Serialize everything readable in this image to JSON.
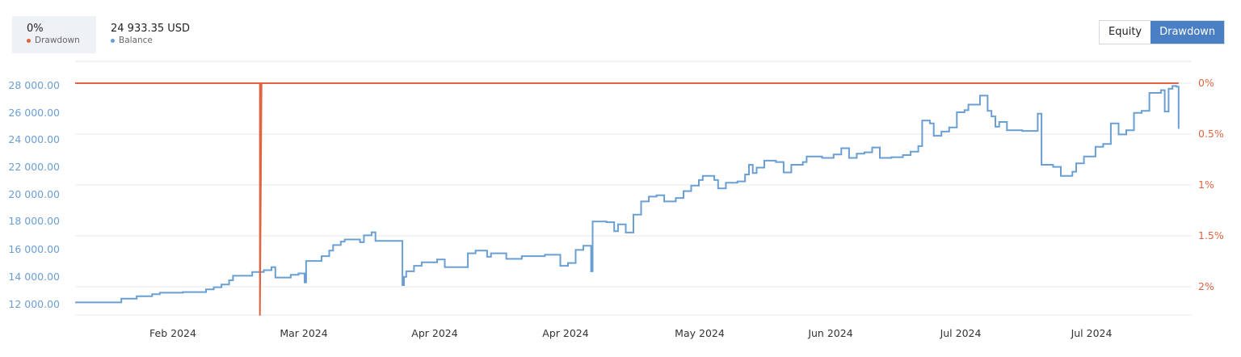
{
  "legend": {
    "drawdown": {
      "value": "0%",
      "label": "Drawdown",
      "color": "#e0643f"
    },
    "balance": {
      "value": "24 933.35 USD",
      "label": "Balance",
      "color": "#6a9fd4"
    }
  },
  "toggle": {
    "equity_label": "Equity",
    "drawdown_label": "Drawdown",
    "active": "Drawdown"
  },
  "chart_data": {
    "type": "line",
    "x_labels": [
      "Feb 2024",
      "Mar 2024",
      "Apr 2024",
      "Apr 2024",
      "May 2024",
      "Jun 2024",
      "Jul 2024",
      "Jul 2024"
    ],
    "y_left_ticks": [
      "28 000.00",
      "26 000.00",
      "24 000.00",
      "22 000.00",
      "20 000.00",
      "18 000.00",
      "16 000.00",
      "14 000.00",
      "12 000.00"
    ],
    "y_right_ticks": [
      "0%",
      "0.5%",
      "1%",
      "1.5%",
      "2%"
    ],
    "ylim_left": [
      12000,
      28000
    ],
    "ylim_right": [
      0,
      2
    ],
    "grid": true,
    "series": [
      {
        "name": "Balance",
        "axis": "left",
        "color": "#6a9fd4",
        "shape": "step",
        "points": [
          [
            0.0,
            12150
          ],
          [
            0.6,
            12420
          ],
          [
            0.8,
            12600
          ],
          [
            1.0,
            12750
          ],
          [
            1.1,
            12850
          ],
          [
            1.4,
            12900
          ],
          [
            1.7,
            13100
          ],
          [
            1.8,
            13250
          ],
          [
            1.9,
            13450
          ],
          [
            2.0,
            13750
          ],
          [
            2.05,
            14080
          ],
          [
            2.3,
            14350
          ],
          [
            2.45,
            14480
          ],
          [
            2.55,
            14700
          ],
          [
            2.6,
            13950
          ],
          [
            2.7,
            13950
          ],
          [
            2.8,
            14150
          ],
          [
            2.9,
            14250
          ],
          [
            2.98,
            13600
          ],
          [
            3.0,
            15150
          ],
          [
            3.2,
            15500
          ],
          [
            3.3,
            15900
          ],
          [
            3.35,
            16300
          ],
          [
            3.45,
            16550
          ],
          [
            3.5,
            16700
          ],
          [
            3.7,
            16500
          ],
          [
            3.75,
            17000
          ],
          [
            3.85,
            17220
          ],
          [
            3.9,
            16600
          ],
          [
            4.25,
            13400
          ],
          [
            4.27,
            14000
          ],
          [
            4.3,
            14400
          ],
          [
            4.4,
            14800
          ],
          [
            4.5,
            15050
          ],
          [
            4.7,
            15250
          ],
          [
            4.8,
            14700
          ],
          [
            5.0,
            14700
          ],
          [
            5.1,
            15700
          ],
          [
            5.2,
            15900
          ],
          [
            5.35,
            15450
          ],
          [
            5.4,
            15700
          ],
          [
            5.6,
            15300
          ],
          [
            5.8,
            15500
          ],
          [
            6.1,
            15600
          ],
          [
            6.3,
            14800
          ],
          [
            6.4,
            15000
          ],
          [
            6.5,
            15950
          ],
          [
            6.6,
            16250
          ],
          [
            6.7,
            14400
          ],
          [
            6.72,
            18000
          ],
          [
            6.9,
            17950
          ],
          [
            7.0,
            17300
          ],
          [
            7.05,
            17800
          ],
          [
            7.15,
            17200
          ],
          [
            7.25,
            18500
          ],
          [
            7.35,
            19450
          ],
          [
            7.45,
            19800
          ],
          [
            7.55,
            19900
          ],
          [
            7.65,
            19450
          ],
          [
            7.8,
            19700
          ],
          [
            7.9,
            20200
          ],
          [
            8.0,
            20600
          ],
          [
            8.1,
            21000
          ],
          [
            8.15,
            21300
          ],
          [
            8.3,
            21000
          ],
          [
            8.35,
            20400
          ],
          [
            8.45,
            20800
          ],
          [
            8.6,
            20900
          ],
          [
            8.7,
            21400
          ],
          [
            8.75,
            22100
          ],
          [
            8.8,
            21500
          ],
          [
            8.85,
            21900
          ],
          [
            8.95,
            22400
          ],
          [
            9.1,
            22300
          ],
          [
            9.2,
            21550
          ],
          [
            9.3,
            22100
          ],
          [
            9.45,
            22300
          ],
          [
            9.5,
            22700
          ],
          [
            9.7,
            22600
          ],
          [
            9.85,
            22850
          ],
          [
            9.95,
            23300
          ],
          [
            10.05,
            22600
          ],
          [
            10.15,
            22900
          ],
          [
            10.25,
            23000
          ],
          [
            10.35,
            23350
          ],
          [
            10.45,
            22600
          ],
          [
            10.6,
            22650
          ],
          [
            10.75,
            22800
          ],
          [
            10.85,
            23050
          ],
          [
            10.95,
            23450
          ],
          [
            11.0,
            25300
          ],
          [
            11.1,
            25100
          ],
          [
            11.15,
            24200
          ],
          [
            11.25,
            24500
          ],
          [
            11.35,
            24800
          ],
          [
            11.45,
            25900
          ],
          [
            11.55,
            26050
          ],
          [
            11.6,
            26450
          ],
          [
            11.75,
            27100
          ],
          [
            11.85,
            26000
          ],
          [
            11.9,
            25600
          ],
          [
            11.95,
            24850
          ],
          [
            12.0,
            25200
          ],
          [
            12.1,
            24600
          ],
          [
            12.3,
            24550
          ],
          [
            12.5,
            25800
          ],
          [
            12.55,
            22100
          ],
          [
            12.7,
            21950
          ],
          [
            12.8,
            21300
          ],
          [
            12.95,
            21600
          ],
          [
            13.0,
            22200
          ],
          [
            13.1,
            22700
          ],
          [
            13.25,
            23400
          ],
          [
            13.35,
            23600
          ],
          [
            13.45,
            25100
          ],
          [
            13.55,
            24300
          ],
          [
            13.65,
            24600
          ],
          [
            13.75,
            25850
          ],
          [
            13.85,
            26000
          ],
          [
            13.95,
            27300
          ],
          [
            14.1,
            27500
          ],
          [
            14.15,
            25950
          ],
          [
            14.2,
            27600
          ],
          [
            14.25,
            27800
          ],
          [
            14.3,
            27750
          ],
          [
            14.33,
            24700
          ]
        ]
      },
      {
        "name": "Drawdown",
        "axis": "right",
        "color": "#e0643f",
        "points": [
          [
            0.0,
            0
          ],
          [
            2.4,
            0
          ],
          [
            2.4,
            2.1
          ],
          [
            2.42,
            0
          ],
          [
            14.33,
            0
          ]
        ]
      }
    ]
  }
}
